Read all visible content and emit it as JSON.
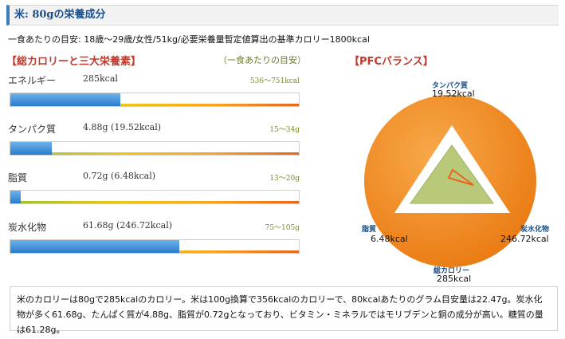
{
  "title": "米: 80gの栄養成分",
  "target_text": "一食あたりの目安: 18歳～29歳/女性/51kg/必要栄養量暫定値算出の基準カロリー1800kcal",
  "nutrients_section": {
    "heading": "【総カロリーと三大栄養素】",
    "subheading": "（一食あたりの目安）"
  },
  "nutrients": [
    {
      "name": "エネルギー",
      "amount": "285kcal",
      "range": "536～751kcal",
      "fill_fraction": 0.38
    },
    {
      "name": "タンパク質",
      "amount": "4.88g (19.52kcal)",
      "range": "15～34g",
      "fill_fraction": 0.145
    },
    {
      "name": "脂質",
      "amount": "0.72g (6.48kcal)",
      "range": "13～20g",
      "fill_fraction": 0.035
    },
    {
      "name": "炭水化物",
      "amount": "61.68g (246.72kcal)",
      "range": "75～105g",
      "fill_fraction": 0.585
    }
  ],
  "pfc": {
    "heading": "【PFCバランス】",
    "protein_label": "タンパク質",
    "protein_value": "19.52kcal",
    "fat_label": "脂質",
    "fat_value": "6.48kcal",
    "carb_label": "炭水化物",
    "carb_value": "246.72kcal",
    "total_label": "総カロリー",
    "total_value": "285kcal",
    "colors": {
      "circle": "#f0861b",
      "triangle": "#ffffff",
      "inner": "#b9c97a",
      "data": "#e8651b"
    }
  },
  "description": "米のカロリーは80gで285kcalのカロリー。米は100g換算で356kcalのカロリーで、80kcalあたりのグラム目安量は22.47g。炭水化物が多く61.68g、たんぱく質が4.88g、脂質が0.72gとなっており、ビタミン・ミネラルではモリブデンと銅の成分が高い。糖質の量は61.28g。"
}
